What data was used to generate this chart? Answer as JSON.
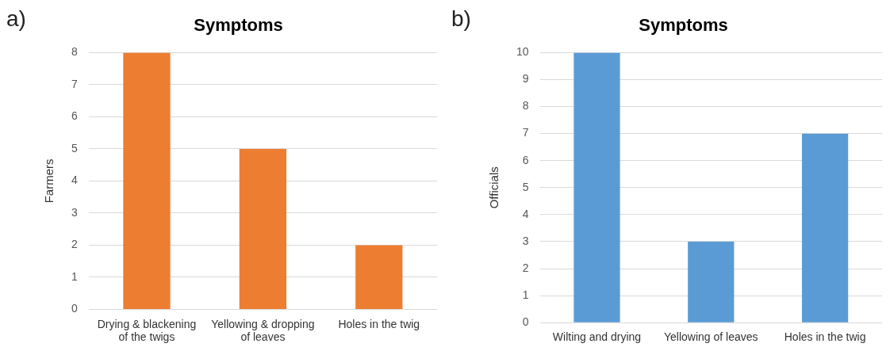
{
  "chart_data": [
    {
      "type": "bar",
      "title": "Symptoms",
      "ylabel": "Farmers",
      "annotations": [
        "a)"
      ],
      "categories": [
        "Drying & blackening of the twigs",
        "Yellowing & dropping of leaves",
        "Holes in the twig"
      ],
      "values": [
        8,
        5,
        2
      ],
      "color": "#ed7d31",
      "ylim": [
        0,
        8
      ],
      "yticks": [
        0,
        1,
        2,
        3,
        4,
        5,
        6,
        7,
        8
      ],
      "grid": "y",
      "legend": false
    },
    {
      "type": "bar",
      "title": "Symptoms",
      "ylabel": "Officials",
      "annotations": [
        "b)"
      ],
      "categories": [
        "Wilting and drying",
        "Yellowing of leaves",
        "Holes in the twig"
      ],
      "values": [
        10,
        3,
        7
      ],
      "color": "#5b9bd5",
      "ylim": [
        0,
        10
      ],
      "yticks": [
        0,
        1,
        2,
        3,
        4,
        5,
        6,
        7,
        8,
        9,
        10
      ],
      "grid": "y",
      "legend": false
    }
  ]
}
